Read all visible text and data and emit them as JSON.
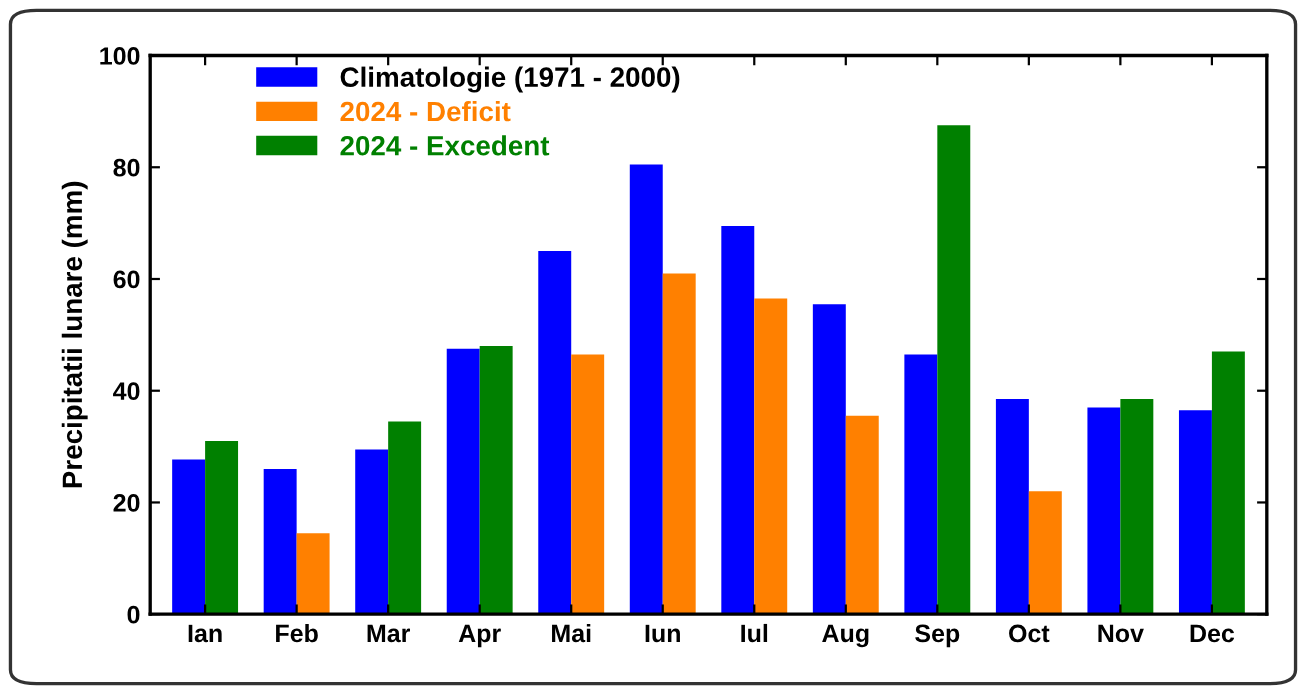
{
  "chart_data": {
    "type": "bar",
    "ylabel": "Precipitatii lunare (mm)",
    "categories": [
      "Ian",
      "Feb",
      "Mar",
      "Apr",
      "Mai",
      "Iun",
      "Iul",
      "Aug",
      "Sep",
      "Oct",
      "Nov",
      "Dec"
    ],
    "series": [
      {
        "name": "Climatologie (1971 - 2000)",
        "color": "#0000ff",
        "values": [
          27.7,
          26,
          29.5,
          47.5,
          65,
          80.5,
          69.5,
          55.5,
          46.5,
          38.5,
          37,
          36.5
        ]
      },
      {
        "name": "2024 - Deficit",
        "color": "#ff8000",
        "values": [
          null,
          14.5,
          null,
          null,
          46.5,
          61,
          56.5,
          35.5,
          null,
          22,
          null,
          null
        ]
      },
      {
        "name": "2024 - Excedent",
        "color": "#008000",
        "values": [
          31,
          null,
          34.5,
          48,
          null,
          null,
          null,
          null,
          87.5,
          null,
          38.5,
          47
        ]
      }
    ],
    "ylim": [
      0,
      100
    ],
    "yticks": [
      0,
      20,
      40,
      60,
      80,
      100
    ],
    "grid": false,
    "legend": "top left"
  }
}
